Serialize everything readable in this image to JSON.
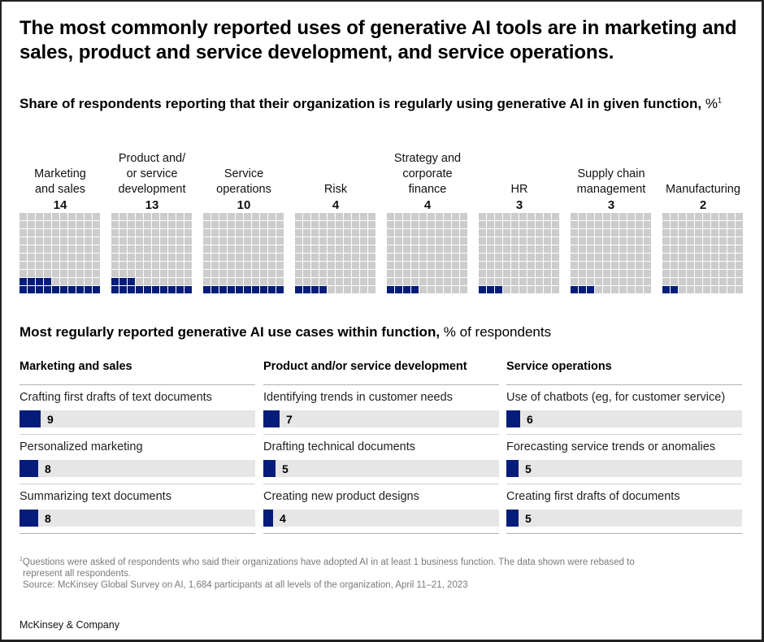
{
  "title": "The most commonly reported uses of generative AI tools are in marketing and sales, product and service development, and service operations.",
  "subtitle": {
    "bold": "Share of respondents reporting that their organization is regularly using generative AI in given function,",
    "unit": "%",
    "footnote_ref": "1"
  },
  "colors": {
    "filled": "#051c7a",
    "empty": "#cccccc",
    "track": "#e6e6e6"
  },
  "section2": {
    "bold": "Most regularly reported generative AI use cases within function,",
    "unit": "% of respondents"
  },
  "chart_data": [
    {
      "type": "waffle",
      "title": "Share of respondents reporting that their organization is regularly using generative AI in given function, %",
      "grid": [
        10,
        10
      ],
      "categories": [
        "Marketing and sales",
        "Product and/or service development",
        "Service operations",
        "Risk",
        "Strategy and corporate finance",
        "HR",
        "Supply chain management",
        "Manufacturing"
      ],
      "label_lines": [
        [
          "Marketing",
          "and sales"
        ],
        [
          "Product and/",
          "or service",
          "development"
        ],
        [
          "Service",
          "operations"
        ],
        [
          "Risk"
        ],
        [
          "Strategy and",
          "corporate",
          "finance"
        ],
        [
          "HR"
        ],
        [
          "Supply chain",
          "management"
        ],
        [
          "Manufacturing"
        ]
      ],
      "values": [
        14,
        13,
        10,
        4,
        4,
        3,
        3,
        2
      ]
    },
    {
      "type": "bar",
      "title": "Most regularly reported generative AI use cases within function, % of respondents",
      "groups": [
        {
          "name": "Marketing and sales",
          "categories": [
            "Crafting first drafts of text documents",
            "Personalized marketing",
            "Summarizing text documents"
          ],
          "values": [
            9,
            8,
            8
          ]
        },
        {
          "name": "Product and/or service development",
          "categories": [
            "Identifying trends in customer needs",
            "Drafting technical documents",
            "Creating new product designs"
          ],
          "values": [
            7,
            5,
            4
          ]
        },
        {
          "name": "Service operations",
          "categories": [
            "Use of chatbots (eg, for customer service)",
            "Forecasting service trends or anomalies",
            "Creating first drafts of documents"
          ],
          "values": [
            6,
            5,
            5
          ]
        }
      ],
      "xlim": [
        0,
        100
      ]
    }
  ],
  "footnote": {
    "ref": "1",
    "line1": "Questions were asked of respondents who said their organizations have adopted AI in at least 1 business function. The data shown were rebased to",
    "line2": "represent all respondents.",
    "source": "Source: McKinsey Global Survey on AI, 1,684 participants at all levels of the organization, April 11–21, 2023"
  },
  "brand": "McKinsey & Company"
}
